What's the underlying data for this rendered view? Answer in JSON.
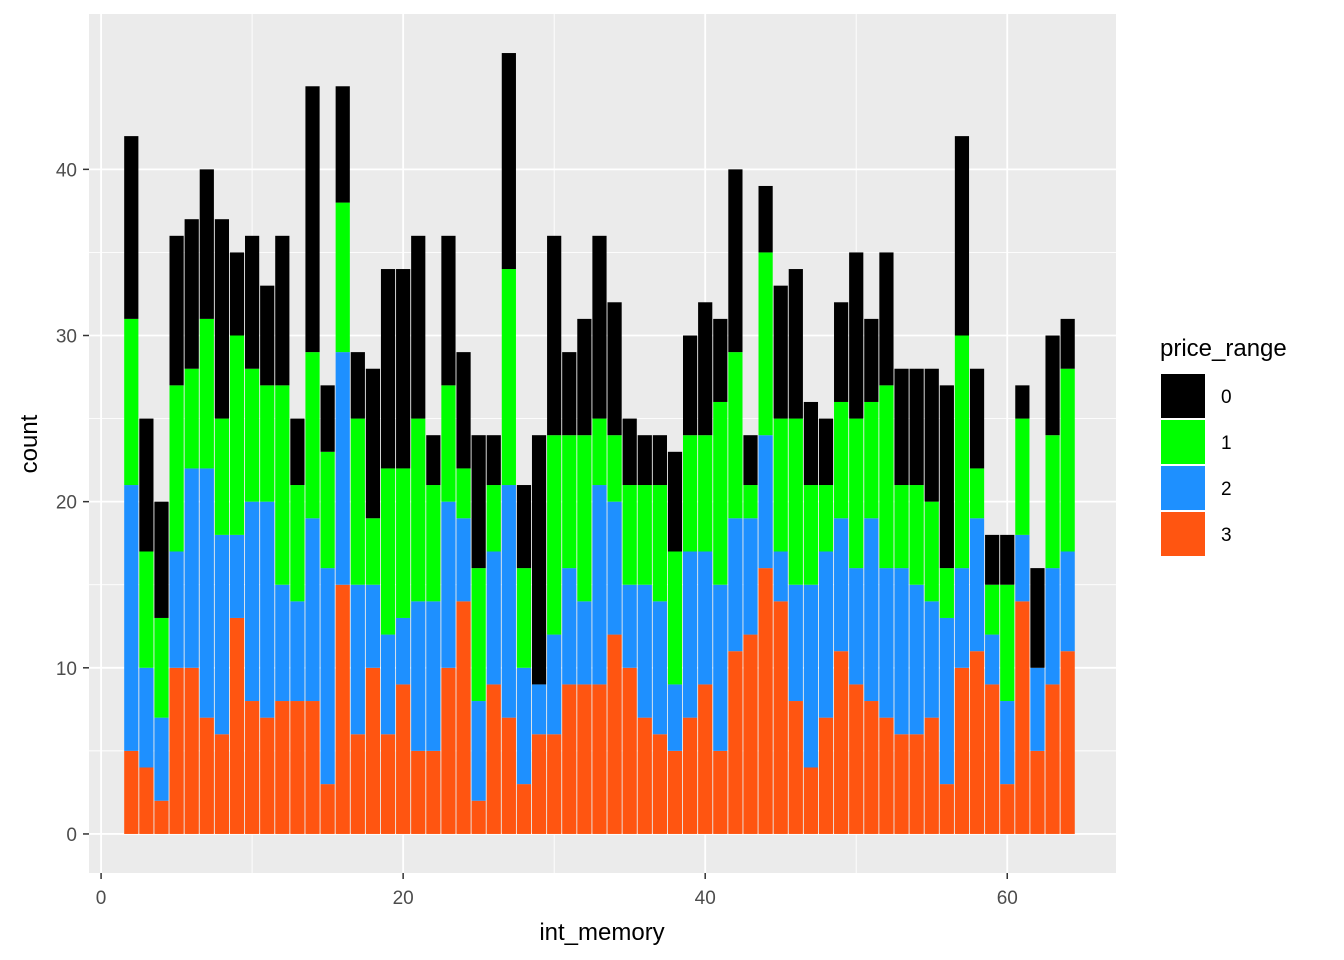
{
  "chart_data": {
    "type": "bar",
    "stacked": true,
    "xlabel": "int_memory",
    "ylabel": "count",
    "xlim": [
      -0.8,
      67.2
    ],
    "ylim": [
      -2.35,
      49.35
    ],
    "x_ticks": [
      0,
      20,
      40,
      60
    ],
    "y_ticks": [
      0,
      10,
      20,
      30,
      40
    ],
    "grid": true,
    "legend": {
      "title": "price_range",
      "position": "right"
    },
    "x": [
      2,
      3,
      4,
      5,
      6,
      7,
      8,
      9,
      10,
      11,
      12,
      13,
      14,
      15,
      16,
      17,
      18,
      19,
      20,
      21,
      22,
      23,
      24,
      25,
      26,
      27,
      28,
      29,
      30,
      31,
      32,
      33,
      34,
      35,
      36,
      37,
      38,
      39,
      40,
      41,
      42,
      43,
      44,
      45,
      46,
      47,
      48,
      49,
      50,
      51,
      52,
      53,
      54,
      55,
      56,
      57,
      58,
      59,
      60,
      61,
      62,
      63,
      64
    ],
    "series": [
      {
        "name": "3",
        "color": "#FF5511",
        "values": [
          5,
          4,
          2,
          10,
          10,
          7,
          6,
          13,
          8,
          7,
          8,
          8,
          8,
          3,
          15,
          6,
          10,
          6,
          9,
          5,
          5,
          10,
          14,
          2,
          9,
          7,
          3,
          6,
          6,
          9,
          9,
          9,
          12,
          10,
          7,
          6,
          5,
          7,
          9,
          5,
          11,
          12,
          16,
          14,
          8,
          4,
          7,
          11,
          9,
          8,
          7,
          6,
          6,
          7,
          3,
          10,
          11,
          9,
          3,
          14,
          5,
          9,
          11
        ]
      },
      {
        "name": "2",
        "color": "#1E90FF",
        "values": [
          16,
          6,
          5,
          7,
          12,
          15,
          12,
          5,
          12,
          13,
          7,
          6,
          11,
          13,
          14,
          9,
          5,
          6,
          4,
          9,
          9,
          10,
          5,
          6,
          8,
          14,
          7,
          3,
          6,
          7,
          5,
          12,
          8,
          5,
          8,
          8,
          4,
          10,
          8,
          10,
          8,
          7,
          8,
          3,
          7,
          11,
          10,
          8,
          7,
          11,
          9,
          10,
          9,
          7,
          10,
          6,
          8,
          3,
          5,
          4,
          5,
          7,
          6
        ]
      },
      {
        "name": "1",
        "color": "#00FF00",
        "values": [
          10,
          7,
          6,
          10,
          6,
          9,
          7,
          12,
          8,
          7,
          12,
          7,
          10,
          7,
          9,
          10,
          4,
          10,
          9,
          11,
          7,
          7,
          3,
          8,
          4,
          13,
          6,
          0,
          12,
          8,
          10,
          4,
          4,
          6,
          6,
          7,
          8,
          7,
          7,
          11,
          10,
          2,
          11,
          8,
          10,
          6,
          4,
          7,
          9,
          7,
          11,
          5,
          6,
          6,
          3,
          14,
          3,
          3,
          7,
          7,
          0,
          8,
          11
        ]
      },
      {
        "name": "0",
        "color": "#000000",
        "values": [
          11,
          8,
          7,
          9,
          9,
          9,
          12,
          5,
          8,
          6,
          9,
          4,
          16,
          4,
          7,
          4,
          9,
          12,
          12,
          11,
          3,
          9,
          7,
          8,
          3,
          13,
          5,
          15,
          12,
          5,
          7,
          11,
          8,
          4,
          3,
          3,
          6,
          6,
          8,
          5,
          11,
          3,
          4,
          8,
          9,
          5,
          4,
          6,
          10,
          5,
          8,
          7,
          7,
          8,
          11,
          12,
          6,
          3,
          3,
          2,
          6,
          6,
          3
        ]
      }
    ]
  }
}
